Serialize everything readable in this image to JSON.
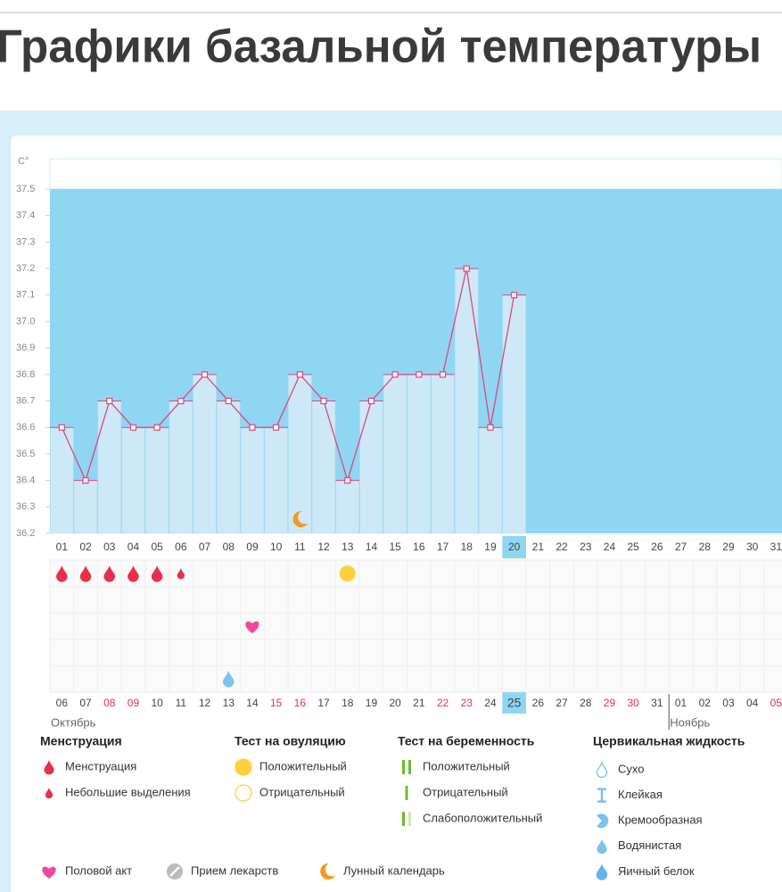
{
  "title": "Графики базальной температуры",
  "chart_data": {
    "type": "line",
    "y_label": "C°",
    "categories": [
      "01",
      "02",
      "03",
      "04",
      "05",
      "06",
      "07",
      "08",
      "09",
      "10",
      "11",
      "12",
      "13",
      "14",
      "15",
      "16",
      "17",
      "18",
      "19",
      "20",
      "21",
      "22",
      "23",
      "24",
      "25",
      "26",
      "27",
      "28",
      "29",
      "30",
      "31"
    ],
    "values": [
      36.6,
      36.4,
      36.7,
      36.6,
      36.6,
      36.7,
      36.8,
      36.7,
      36.6,
      36.6,
      36.8,
      36.7,
      36.4,
      36.7,
      36.8,
      36.8,
      36.8,
      37.2,
      36.6,
      37.1,
      null,
      null,
      null,
      null,
      null,
      null,
      null,
      null,
      null,
      null,
      null
    ],
    "ylim": [
      36.2,
      37.5
    ],
    "yticks": [
      36.2,
      36.3,
      36.4,
      36.5,
      36.6,
      36.7,
      36.8,
      36.9,
      {
        "value": 37,
        "label": "37.0"
      },
      37.1,
      37.2,
      37.3,
      37.4,
      37.5
    ],
    "color": "#e0457b",
    "bar_color": "#cde9f8",
    "background_color": "#8fd6f3",
    "current_index": 19,
    "dates": [
      {
        "label": "06",
        "weekend": false
      },
      {
        "label": "07",
        "weekend": false
      },
      {
        "label": "08",
        "weekend": true
      },
      {
        "label": "09",
        "weekend": true
      },
      {
        "label": "10",
        "weekend": false
      },
      {
        "label": "11",
        "weekend": false
      },
      {
        "label": "12",
        "weekend": false
      },
      {
        "label": "13",
        "weekend": false
      },
      {
        "label": "14",
        "weekend": false
      },
      {
        "label": "15",
        "weekend": true
      },
      {
        "label": "16",
        "weekend": true
      },
      {
        "label": "17",
        "weekend": false
      },
      {
        "label": "18",
        "weekend": false
      },
      {
        "label": "19",
        "weekend": false
      },
      {
        "label": "20",
        "weekend": false
      },
      {
        "label": "21",
        "weekend": false
      },
      {
        "label": "22",
        "weekend": true
      },
      {
        "label": "23",
        "weekend": true
      },
      {
        "label": "24",
        "weekend": false
      },
      {
        "label": "25",
        "weekend": false
      },
      {
        "label": "26",
        "weekend": false
      },
      {
        "label": "27",
        "weekend": false
      },
      {
        "label": "28",
        "weekend": false
      },
      {
        "label": "29",
        "weekend": true
      },
      {
        "label": "30",
        "weekend": true
      },
      {
        "label": "31",
        "weekend": false
      },
      {
        "label": "01",
        "weekend": false
      },
      {
        "label": "02",
        "weekend": false
      },
      {
        "label": "03",
        "weekend": false
      },
      {
        "label": "04",
        "weekend": false
      },
      {
        "label": "05",
        "weekend": true
      }
    ],
    "months": [
      {
        "name": "Октябрь",
        "start": 0
      },
      {
        "name": "Ноябрь",
        "start": 26
      }
    ],
    "events": {
      "menstruation": [
        1,
        2,
        3,
        4,
        5
      ],
      "spotting": [
        6
      ],
      "ovulation_positive": [
        13
      ],
      "intercourse": [
        9
      ],
      "egg_white": [
        8
      ],
      "moon": [
        11
      ]
    }
  },
  "legend": {
    "groups": [
      {
        "title": "Менструация",
        "items": [
          "Менструация",
          "Небольшие выделения"
        ]
      },
      {
        "title": "Тест на овуляцию",
        "items": [
          "Положительный",
          "Отрицательный"
        ]
      },
      {
        "title": "Тест на беременность",
        "items": [
          "Положительный",
          "Отрицательный",
          "Слабоположительный"
        ]
      },
      {
        "title": "Цервикальная жидкость",
        "items": [
          "Сухо",
          "Клейкая",
          "Кремообразная",
          "Водянистая",
          "Яичный белок"
        ]
      }
    ],
    "bottom": [
      "Половой акт",
      "Прием лекарств",
      "Лунный календарь"
    ]
  }
}
